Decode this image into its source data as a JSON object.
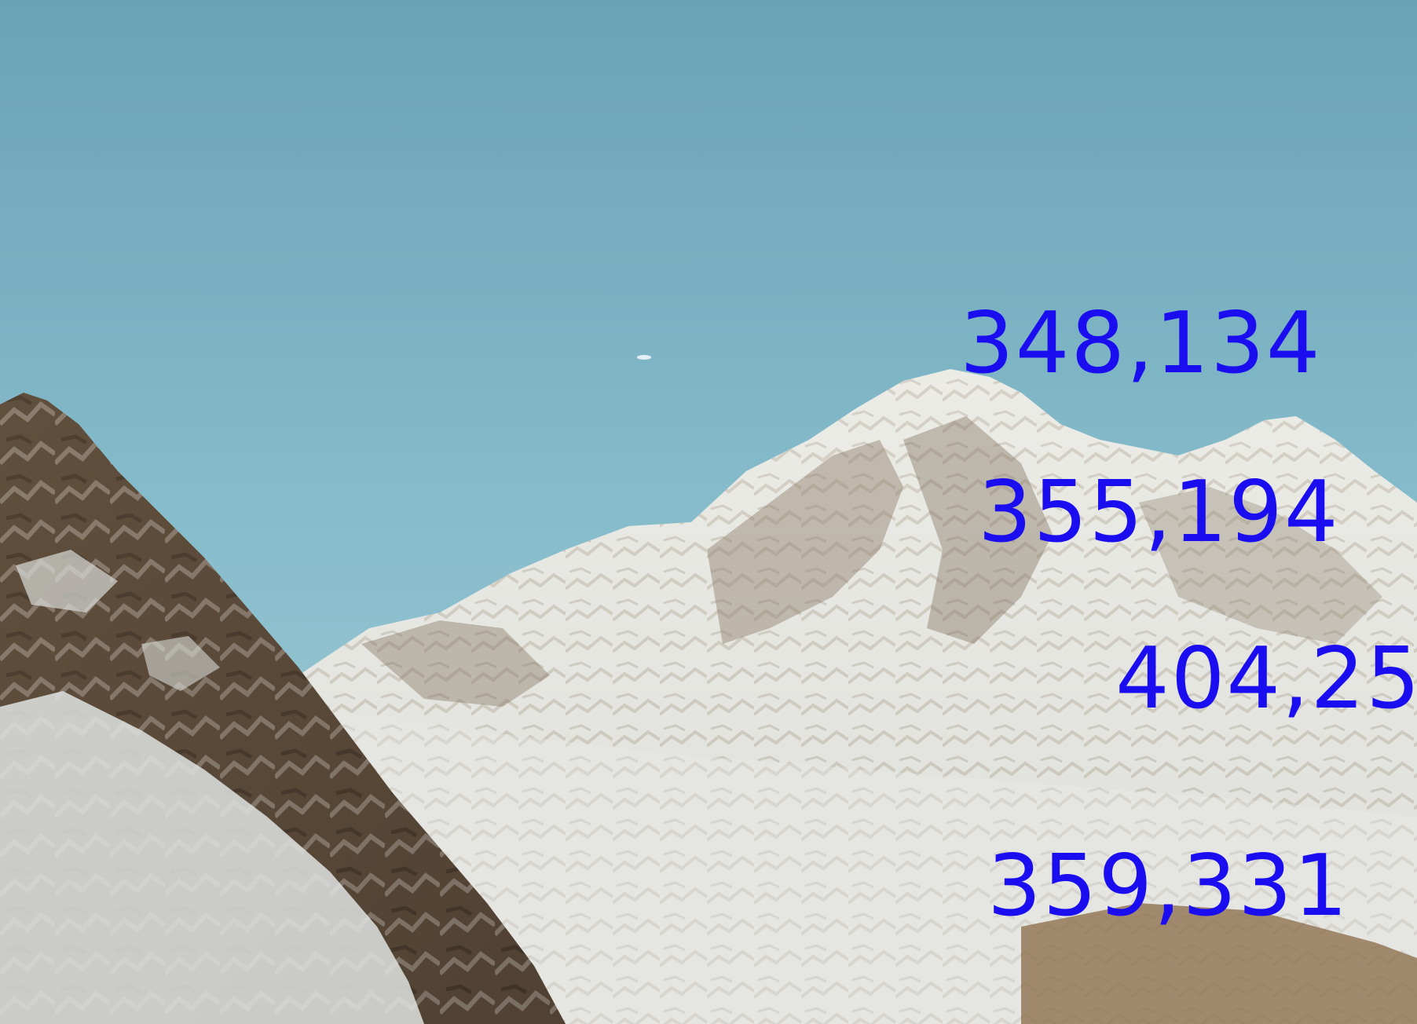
{
  "image": {
    "subject": "snow-covered-mountain-photo",
    "sky_color": "#7fb3c4",
    "annotation_color": "#1a0df0"
  },
  "labels": [
    {
      "text": "348,134"
    },
    {
      "text": "355,194"
    },
    {
      "text": "404,25"
    },
    {
      "text": "359,331"
    }
  ]
}
